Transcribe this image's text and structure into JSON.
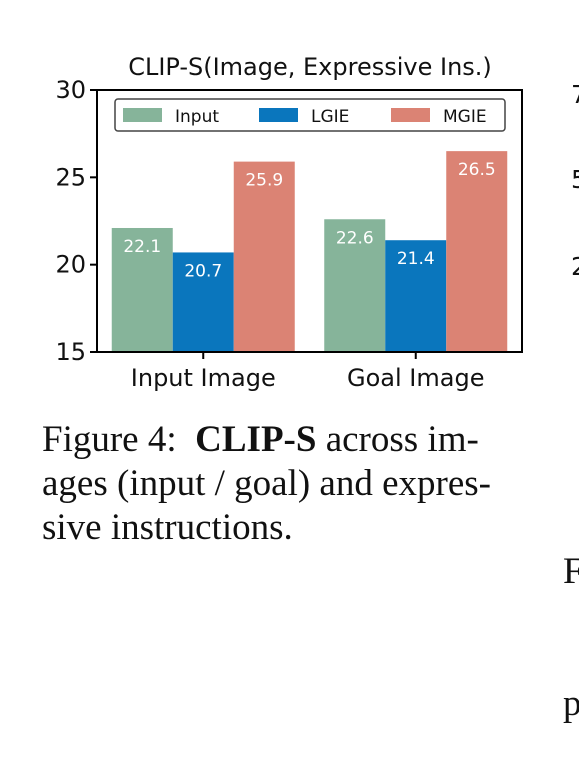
{
  "chart_data": {
    "type": "bar",
    "title": "CLIP-S(Image, Expressive Ins.)",
    "categories": [
      "Input Image",
      "Goal Image"
    ],
    "series": [
      {
        "name": "Input",
        "color": "#86b49a",
        "values": [
          22.1,
          22.6
        ]
      },
      {
        "name": "LGIE",
        "color": "#0a76bd",
        "values": [
          20.7,
          21.4
        ]
      },
      {
        "name": "MGIE",
        "color": "#db8374",
        "values": [
          25.9,
          26.5
        ]
      }
    ],
    "ylim": [
      15,
      30
    ],
    "yticks": [
      15,
      20,
      25,
      30
    ],
    "legend": "top",
    "grid": false
  },
  "caption": {
    "label": "Figure 4:",
    "bold": "CLIP-S",
    "line1_rest": " across im-",
    "line2": "ages (input / goal) and expres-",
    "line3": "sive instructions."
  },
  "neighbor": {
    "caption_start_1": "F",
    "caption_start_2": "p",
    "tick_1": "7",
    "tick_2": "5",
    "tick_3": "2"
  }
}
